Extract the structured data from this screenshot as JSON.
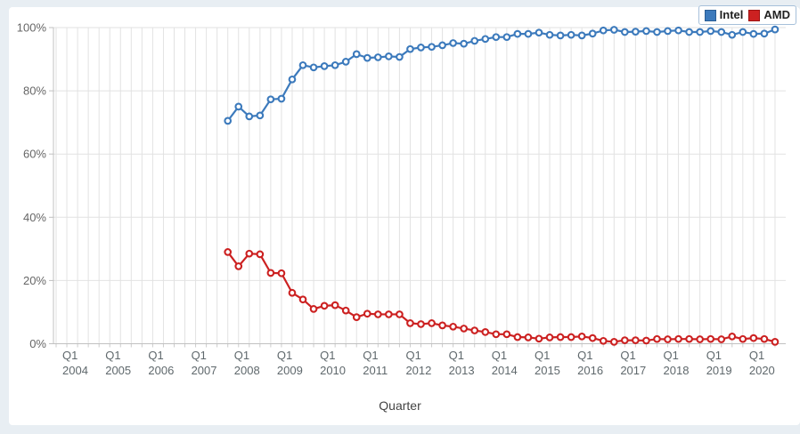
{
  "page": {
    "background_color": "#e8eef3",
    "panel_color": "#ffffff"
  },
  "legend": {
    "items": [
      {
        "label": "Intel",
        "color": "#3c7abc",
        "border": "#2a5d94"
      },
      {
        "label": "AMD",
        "color": "#cc2121",
        "border": "#9e1414"
      }
    ]
  },
  "chart_data": {
    "type": "line",
    "title": "",
    "xlabel": "Quarter",
    "ylabel": "",
    "ylim": [
      0,
      100
    ],
    "grid": true,
    "legend_position": "top-right",
    "marker": "open-circle",
    "y_tick_values": [
      0,
      20,
      40,
      60,
      80,
      100
    ],
    "y_tick_labels": [
      "0%",
      "20%",
      "40%",
      "60%",
      "80%",
      "100%"
    ],
    "x_tick_prefix": "Q1",
    "x_year_labels": [
      "2004",
      "2005",
      "2006",
      "2007",
      "2008",
      "2009",
      "2010",
      "2011",
      "2012",
      "2013",
      "2014",
      "2015",
      "2016",
      "2017",
      "2018",
      "2019",
      "2020"
    ],
    "x_axis_start": {
      "year": 2003,
      "quarter": 4
    },
    "x_axis_quarters_total": 68,
    "series_start": {
      "year": 2007,
      "quarter": 4
    },
    "series": [
      {
        "name": "Intel",
        "color": "#3c7abc",
        "values": [
          70.5,
          75.0,
          71.9,
          72.2,
          77.3,
          77.5,
          83.6,
          88.1,
          87.4,
          87.8,
          88.1,
          89.2,
          91.6,
          90.4,
          90.6,
          90.9,
          90.7,
          93.2,
          93.7,
          93.9,
          94.4,
          95.1,
          94.9,
          95.8,
          96.4,
          97.0,
          97.0,
          98.0,
          98.0,
          98.4,
          97.7,
          97.5,
          97.7,
          97.5,
          98.1,
          99.1,
          99.3,
          98.6,
          98.7,
          98.9,
          98.6,
          98.9,
          99.1,
          98.6,
          98.6,
          98.9,
          98.6,
          97.7,
          98.6,
          98.0,
          98.1,
          99.4
        ]
      },
      {
        "name": "AMD",
        "color": "#cc2121",
        "values": [
          29.0,
          24.5,
          28.5,
          28.3,
          22.4,
          22.3,
          16.1,
          14.0,
          11.0,
          12.0,
          12.2,
          10.5,
          8.4,
          9.5,
          9.3,
          9.3,
          9.3,
          6.5,
          6.2,
          6.5,
          5.8,
          5.4,
          4.8,
          4.2,
          3.7,
          3.0,
          3.0,
          2.1,
          2.0,
          1.6,
          2.0,
          2.1,
          2.1,
          2.3,
          1.8,
          0.9,
          0.6,
          1.1,
          1.1,
          1.0,
          1.5,
          1.4,
          1.5,
          1.5,
          1.4,
          1.5,
          1.4,
          2.3,
          1.5,
          1.8,
          1.5,
          0.6
        ]
      }
    ]
  }
}
